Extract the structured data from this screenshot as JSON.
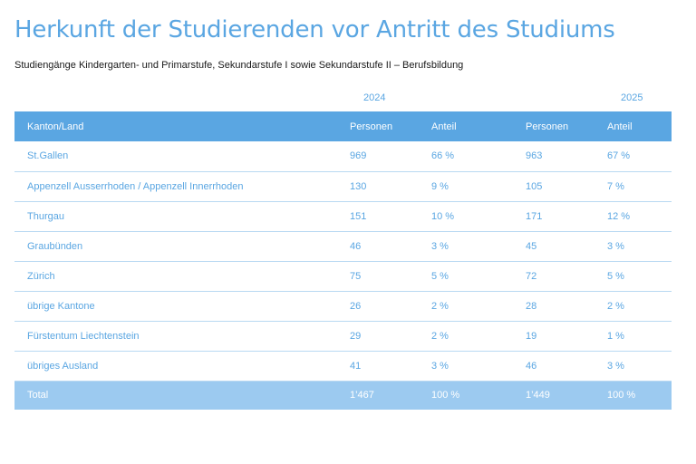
{
  "title": "Herkunft der Studierenden vor Antritt des Studiums",
  "subtitle": "Studiengänge Kindergarten- und Primarstufe, Sekundarstufe I sowie Sekundarstufe II – Berufsbildung",
  "years": [
    "2024",
    "2025"
  ],
  "header": {
    "region": "Kanton/Land",
    "persons_2024": "Personen",
    "share_2024": "Anteil",
    "persons_2025": "Personen",
    "share_2025": "Anteil"
  },
  "rows": [
    {
      "region": "St.Gallen",
      "p2024": "969",
      "s2024": "66 %",
      "p2025": "963",
      "s2025": "67 %"
    },
    {
      "region": "Appenzell Ausserrhoden / Appenzell Innerrhoden",
      "p2024": "130",
      "s2024": "9 %",
      "p2025": "105",
      "s2025": "7 %"
    },
    {
      "region": "Thurgau",
      "p2024": "151",
      "s2024": "10 %",
      "p2025": "171",
      "s2025": "12 %"
    },
    {
      "region": "Graubünden",
      "p2024": "46",
      "s2024": "3 %",
      "p2025": "45",
      "s2025": "3 %"
    },
    {
      "region": "Zürich",
      "p2024": "75",
      "s2024": "5 %",
      "p2025": "72",
      "s2025": "5 %"
    },
    {
      "region": "übrige Kantone",
      "p2024": "26",
      "s2024": "2 %",
      "p2025": "28",
      "s2025": "2 %"
    },
    {
      "region": "Fürstentum Liechtenstein",
      "p2024": "29",
      "s2024": "2 %",
      "p2025": "19",
      "s2025": "1 %"
    },
    {
      "region": "übriges Ausland",
      "p2024": "41",
      "s2024": "3 %",
      "p2025": "46",
      "s2025": "3 %"
    }
  ],
  "total": {
    "region": "Total",
    "p2024": "1’467",
    "s2024": "100 %",
    "p2025": "1’449",
    "s2025": "100 %"
  },
  "colors": {
    "accent": "#5aa6e2",
    "total_row": "#9ccaf0",
    "divider": "#b9d9f2"
  }
}
